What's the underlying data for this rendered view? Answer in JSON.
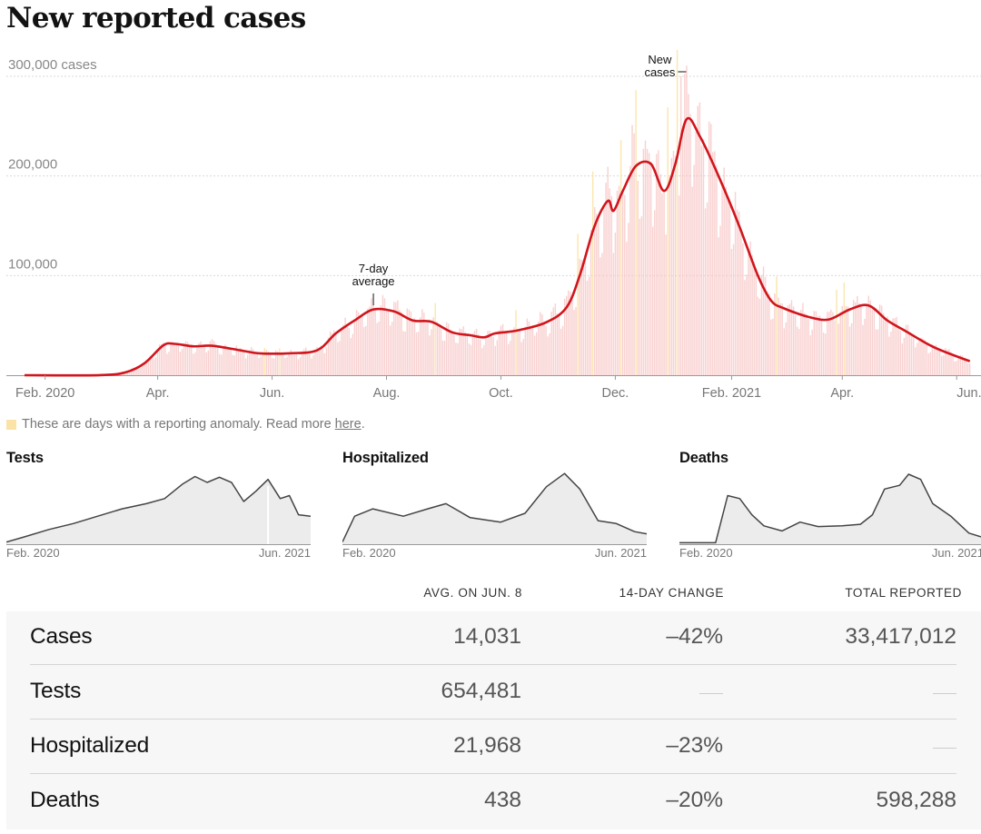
{
  "title": "New reported cases",
  "chart_data": {
    "type": "bar",
    "title": "New reported cases",
    "y_axis": {
      "ticks": [
        {
          "value": 100000,
          "label": "100,000"
        },
        {
          "value": 200000,
          "label": "200,000"
        },
        {
          "value": 300000,
          "label": "300,000 cases"
        }
      ],
      "ylim": [
        0,
        300000
      ]
    },
    "x_axis": {
      "labels": [
        "Feb. 2020",
        "Apr.",
        "Jun.",
        "Aug.",
        "Oct.",
        "Dec.",
        "Feb. 2021",
        "Apr.",
        "Jun."
      ]
    },
    "annotations": {
      "average": [
        "7-day",
        "average"
      ],
      "new_cases": [
        "New",
        "cases"
      ]
    },
    "series": [
      {
        "name": "7-day average",
        "type": "line",
        "color": "#d0151c",
        "points": [
          [
            "2020-01-21",
            0
          ],
          [
            "2020-03-01",
            50
          ],
          [
            "2020-03-15",
            3000
          ],
          [
            "2020-03-25",
            12000
          ],
          [
            "2020-04-04",
            30000
          ],
          [
            "2020-04-10",
            31500
          ],
          [
            "2020-04-20",
            29000
          ],
          [
            "2020-04-30",
            29500
          ],
          [
            "2020-05-15",
            25000
          ],
          [
            "2020-05-25",
            22000
          ],
          [
            "2020-06-10",
            22000
          ],
          [
            "2020-06-25",
            25000
          ],
          [
            "2020-07-05",
            42000
          ],
          [
            "2020-07-15",
            55000
          ],
          [
            "2020-07-25",
            66000
          ],
          [
            "2020-08-05",
            64000
          ],
          [
            "2020-08-15",
            55000
          ],
          [
            "2020-08-25",
            53500
          ],
          [
            "2020-09-05",
            43000
          ],
          [
            "2020-09-15",
            40000
          ],
          [
            "2020-09-22",
            38000
          ],
          [
            "2020-09-28",
            42000
          ],
          [
            "2020-10-10",
            45000
          ],
          [
            "2020-10-25",
            53000
          ],
          [
            "2020-11-05",
            68000
          ],
          [
            "2020-11-12",
            100000
          ],
          [
            "2020-11-20",
            150000
          ],
          [
            "2020-11-27",
            175000
          ],
          [
            "2020-11-30",
            165000
          ],
          [
            "2020-12-05",
            185000
          ],
          [
            "2020-12-12",
            210000
          ],
          [
            "2020-12-20",
            212000
          ],
          [
            "2020-12-27",
            185000
          ],
          [
            "2021-01-02",
            212000
          ],
          [
            "2021-01-08",
            257000
          ],
          [
            "2021-01-15",
            240000
          ],
          [
            "2021-01-25",
            200000
          ],
          [
            "2021-02-05",
            150000
          ],
          [
            "2021-02-15",
            100000
          ],
          [
            "2021-02-22",
            75000
          ],
          [
            "2021-03-01",
            67000
          ],
          [
            "2021-03-15",
            58000
          ],
          [
            "2021-03-25",
            56000
          ],
          [
            "2021-04-05",
            66000
          ],
          [
            "2021-04-15",
            70000
          ],
          [
            "2021-04-25",
            55000
          ],
          [
            "2021-05-05",
            44000
          ],
          [
            "2021-05-20",
            28000
          ],
          [
            "2021-06-08",
            14031
          ]
        ]
      },
      {
        "name": "New cases",
        "type": "bar",
        "color": "#f7c1c1",
        "anomaly_color": "#fbe3a7",
        "note": "These are days with a reporting anomaly. Read more",
        "note_link": "here",
        "peak_value": 300000
      }
    ]
  },
  "small_multiples": [
    {
      "title": "Tests",
      "start_label": "Feb. 2020",
      "end_label": "Jun. 2021",
      "points": [
        [
          0,
          0.03
        ],
        [
          0.06,
          0.1
        ],
        [
          0.14,
          0.2
        ],
        [
          0.22,
          0.28
        ],
        [
          0.3,
          0.38
        ],
        [
          0.38,
          0.48
        ],
        [
          0.46,
          0.55
        ],
        [
          0.52,
          0.62
        ],
        [
          0.58,
          0.82
        ],
        [
          0.62,
          0.92
        ],
        [
          0.66,
          0.84
        ],
        [
          0.7,
          0.91
        ],
        [
          0.74,
          0.84
        ],
        [
          0.78,
          0.58
        ],
        [
          0.82,
          0.72
        ],
        [
          0.86,
          0.88
        ],
        [
          0.9,
          0.62
        ],
        [
          0.93,
          0.66
        ],
        [
          0.96,
          0.4
        ],
        [
          1,
          0.38
        ]
      ],
      "marker_fraction": 0.86
    },
    {
      "title": "Hospitalized",
      "start_label": "Feb. 2020",
      "end_label": "Jun. 2021",
      "points": [
        [
          0,
          0.03
        ],
        [
          0.04,
          0.38
        ],
        [
          0.1,
          0.48
        ],
        [
          0.2,
          0.38
        ],
        [
          0.28,
          0.48
        ],
        [
          0.34,
          0.55
        ],
        [
          0.42,
          0.36
        ],
        [
          0.52,
          0.3
        ],
        [
          0.6,
          0.42
        ],
        [
          0.67,
          0.78
        ],
        [
          0.73,
          0.96
        ],
        [
          0.78,
          0.75
        ],
        [
          0.84,
          0.32
        ],
        [
          0.9,
          0.28
        ],
        [
          0.96,
          0.17
        ],
        [
          1,
          0.14
        ]
      ]
    },
    {
      "title": "Deaths",
      "start_label": "Feb. 2020",
      "end_label": "Jun. 2021",
      "points": [
        [
          0,
          0.02
        ],
        [
          0.12,
          0.02
        ],
        [
          0.16,
          0.66
        ],
        [
          0.2,
          0.62
        ],
        [
          0.24,
          0.4
        ],
        [
          0.28,
          0.25
        ],
        [
          0.34,
          0.18
        ],
        [
          0.4,
          0.3
        ],
        [
          0.46,
          0.24
        ],
        [
          0.54,
          0.25
        ],
        [
          0.6,
          0.27
        ],
        [
          0.64,
          0.4
        ],
        [
          0.68,
          0.75
        ],
        [
          0.73,
          0.8
        ],
        [
          0.76,
          0.95
        ],
        [
          0.8,
          0.88
        ],
        [
          0.84,
          0.55
        ],
        [
          0.9,
          0.38
        ],
        [
          0.96,
          0.15
        ],
        [
          1,
          0.1
        ]
      ]
    }
  ],
  "table": {
    "headers": [
      "AVG. ON JUN. 8",
      "14-DAY CHANGE",
      "TOTAL REPORTED"
    ],
    "rows": [
      {
        "name": "Cases",
        "avg": "14,031",
        "change": "–42%",
        "total": "33,417,012"
      },
      {
        "name": "Tests",
        "avg": "654,481",
        "change": "",
        "total": ""
      },
      {
        "name": "Hospitalized",
        "avg": "21,968",
        "change": "–23%",
        "total": ""
      },
      {
        "name": "Deaths",
        "avg": "438",
        "change": "–20%",
        "total": "598,288"
      }
    ]
  }
}
